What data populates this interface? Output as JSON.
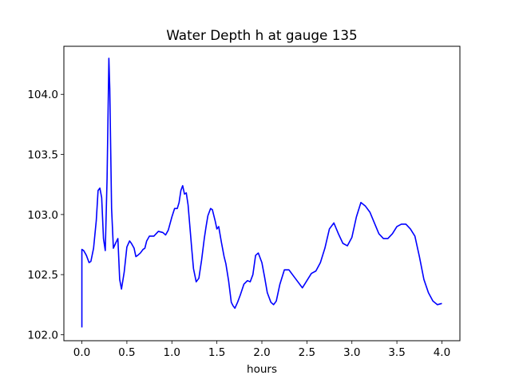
{
  "chart_data": {
    "type": "line",
    "title": "Water Depth h at gauge 135",
    "xlabel": "hours",
    "ylabel": "",
    "xlim": [
      -0.2,
      4.2
    ],
    "ylim": [
      101.95,
      104.4
    ],
    "xticks": [
      0.0,
      0.5,
      1.0,
      1.5,
      2.0,
      2.5,
      3.0,
      3.5,
      4.0
    ],
    "xtick_labels": [
      "0.0",
      "0.5",
      "1.0",
      "1.5",
      "2.0",
      "2.5",
      "3.0",
      "3.5",
      "4.0"
    ],
    "yticks": [
      102.0,
      102.5,
      103.0,
      103.5,
      104.0
    ],
    "ytick_labels": [
      "102.0",
      "102.5",
      "103.0",
      "103.5",
      "104.0"
    ],
    "grid": false,
    "legend": "none",
    "series": [
      {
        "color": "#0000ff",
        "x": [
          0.0,
          0.0,
          0.02,
          0.05,
          0.08,
          0.1,
          0.13,
          0.16,
          0.18,
          0.2,
          0.22,
          0.24,
          0.26,
          0.28,
          0.3,
          0.31,
          0.33,
          0.35,
          0.38,
          0.4,
          0.42,
          0.44,
          0.47,
          0.5,
          0.53,
          0.55,
          0.58,
          0.6,
          0.62,
          0.65,
          0.68,
          0.7,
          0.72,
          0.75,
          0.8,
          0.85,
          0.9,
          0.93,
          0.96,
          1.0,
          1.03,
          1.06,
          1.08,
          1.1,
          1.12,
          1.14,
          1.16,
          1.18,
          1.2,
          1.22,
          1.24,
          1.27,
          1.3,
          1.33,
          1.36,
          1.38,
          1.4,
          1.43,
          1.45,
          1.48,
          1.5,
          1.52,
          1.55,
          1.58,
          1.6,
          1.63,
          1.66,
          1.68,
          1.7,
          1.73,
          1.76,
          1.8,
          1.84,
          1.87,
          1.9,
          1.93,
          1.96,
          2.0,
          2.03,
          2.06,
          2.1,
          2.13,
          2.16,
          2.2,
          2.25,
          2.3,
          2.35,
          2.4,
          2.45,
          2.5,
          2.55,
          2.6,
          2.65,
          2.7,
          2.75,
          2.8,
          2.85,
          2.9,
          2.95,
          3.0,
          3.05,
          3.1,
          3.15,
          3.2,
          3.25,
          3.3,
          3.35,
          3.4,
          3.45,
          3.5,
          3.55,
          3.6,
          3.65,
          3.7,
          3.75,
          3.8,
          3.85,
          3.9,
          3.95,
          4.0
        ],
        "y": [
          102.06,
          102.71,
          102.7,
          102.66,
          102.6,
          102.61,
          102.72,
          102.95,
          103.2,
          103.22,
          103.14,
          102.8,
          102.7,
          103.3,
          104.3,
          104.05,
          103.05,
          102.72,
          102.77,
          102.8,
          102.46,
          102.38,
          102.52,
          102.73,
          102.78,
          102.76,
          102.72,
          102.65,
          102.66,
          102.68,
          102.71,
          102.72,
          102.78,
          102.82,
          102.82,
          102.86,
          102.85,
          102.83,
          102.87,
          102.98,
          103.05,
          103.05,
          103.1,
          103.2,
          103.24,
          103.17,
          103.18,
          103.08,
          102.9,
          102.72,
          102.55,
          102.44,
          102.47,
          102.62,
          102.8,
          102.9,
          102.99,
          103.05,
          103.04,
          102.95,
          102.88,
          102.9,
          102.77,
          102.65,
          102.59,
          102.45,
          102.27,
          102.24,
          102.22,
          102.27,
          102.33,
          102.42,
          102.45,
          102.44,
          102.5,
          102.66,
          102.68,
          102.6,
          102.48,
          102.35,
          102.27,
          102.25,
          102.28,
          102.42,
          102.54,
          102.54,
          102.49,
          102.44,
          102.39,
          102.45,
          102.51,
          102.53,
          102.6,
          102.72,
          102.88,
          102.93,
          102.84,
          102.76,
          102.74,
          102.81,
          102.98,
          103.1,
          103.07,
          103.02,
          102.93,
          102.84,
          102.8,
          102.8,
          102.84,
          102.9,
          102.92,
          102.92,
          102.88,
          102.82,
          102.65,
          102.46,
          102.35,
          102.28,
          102.25,
          102.26
        ]
      }
    ]
  }
}
